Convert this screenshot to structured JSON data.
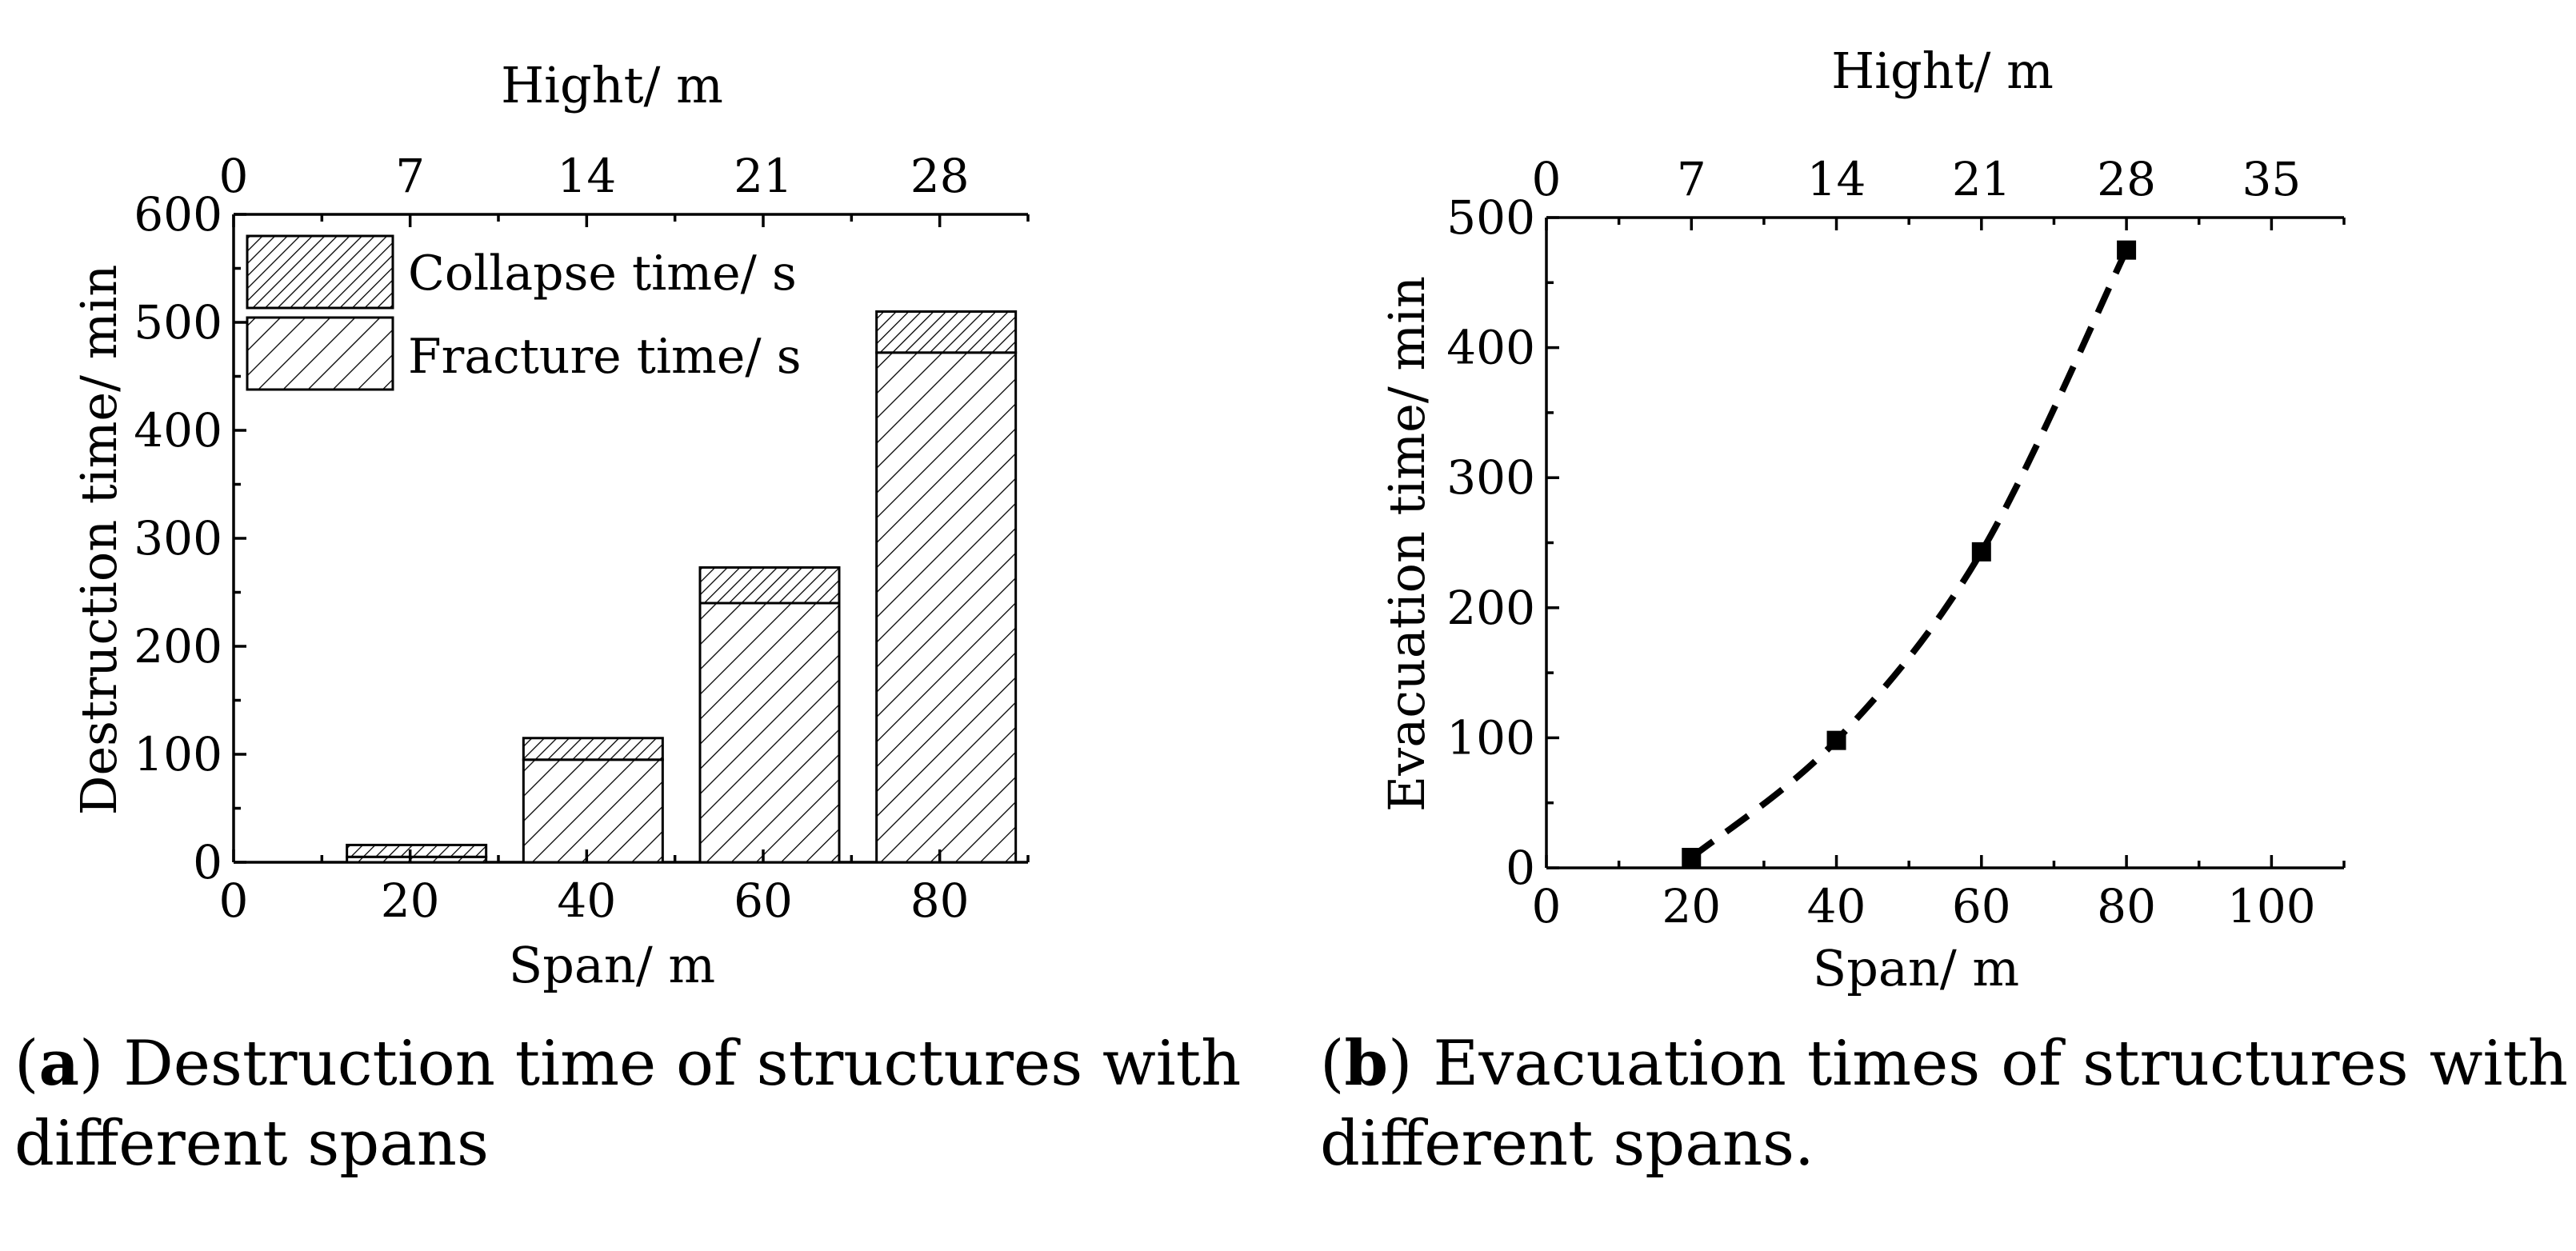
{
  "chart_data": [
    {
      "type": "bar",
      "stacked": true,
      "x": [
        20,
        40,
        60,
        80
      ],
      "series": [
        {
          "name": "Fracture time/ s",
          "values": [
            5,
            95,
            240,
            472
          ]
        },
        {
          "name": "Collapse time/ s",
          "values": [
            11,
            20,
            33,
            38
          ]
        }
      ],
      "xlabel": "Span/ m",
      "ylabel": "Destruction time/ min",
      "top_xlabel": "Hight/ m",
      "xlim": [
        0,
        90
      ],
      "ylim": [
        0,
        600
      ],
      "xticks": [
        0,
        20,
        40,
        60,
        80
      ],
      "yticks": [
        0,
        100,
        200,
        300,
        400,
        500,
        600
      ],
      "top_xlim": [
        0,
        31.5
      ],
      "top_xticks": [
        0,
        7,
        14,
        21,
        28
      ],
      "legend": [
        "Collapse time/ s",
        "Fracture time/ s"
      ],
      "legend_position": "top-left",
      "caption_label": "a",
      "caption_text": " Destruction time of structures with different spans"
    },
    {
      "type": "line",
      "x": [
        20,
        40,
        60,
        80
      ],
      "y": [
        8,
        98,
        243,
        475
      ],
      "line_style": "dashed",
      "marker": "square",
      "xlabel": "Span/ m",
      "ylabel": "Evacuation time/ min",
      "top_xlabel": "Hight/ m",
      "xlim": [
        0,
        110
      ],
      "ylim": [
        0,
        500
      ],
      "xticks": [
        0,
        20,
        40,
        60,
        80,
        100
      ],
      "yticks": [
        0,
        100,
        200,
        300,
        400,
        500
      ],
      "top_xlim": [
        0,
        38.5
      ],
      "top_xticks": [
        0,
        7,
        14,
        21,
        28,
        35
      ],
      "caption_label": "b",
      "caption_text": " Evacuation times of structures with different spans."
    }
  ]
}
